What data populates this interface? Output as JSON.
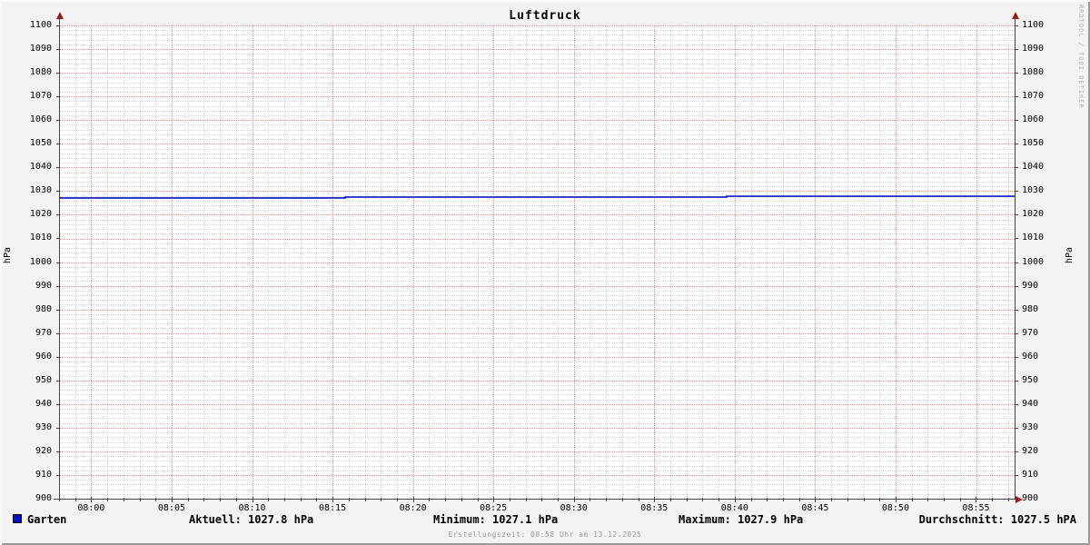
{
  "title": "Luftdruck",
  "watermark": "RRDTOOL / TOBI OETIKER",
  "y_axis_label_left": "hPa",
  "y_axis_label_right": "hPa",
  "legend": {
    "series_label": "Garten",
    "aktuell": "Aktuell: 1027.8 hPa",
    "minimum": "Minimum: 1027.1 hPa",
    "maximum": "Maximum: 1027.9 hPa",
    "durchschnitt": "Durchschnitt: 1027.5 hPA"
  },
  "footer": "Erstellungszeit: 08:58 Uhr am 13.12.2025",
  "colors": {
    "background": "#f3f3f3",
    "canvas": "#ffffff",
    "series_line": "#0011cc",
    "major_grid": "#d83030",
    "minor_grid": "#6e6e6e",
    "axis": "#444444",
    "arrow": "#9b1c1c",
    "footer_text": "#999999",
    "watermark_text": "#b4b4b4"
  },
  "chart_data": {
    "type": "line",
    "title": "Luftdruck",
    "xlabel": "",
    "ylabel": "hPa",
    "ylim": [
      900,
      1100
    ],
    "y_major_step": 10,
    "y_minor_step": 2,
    "x_start_min": -2,
    "x_end_min": 57.4,
    "x_major_step_min": 5,
    "x_minor_step_min": 1,
    "x_tick_labels": [
      "08:00",
      "08:05",
      "08:10",
      "08:15",
      "08:20",
      "08:25",
      "08:30",
      "08:35",
      "08:40",
      "08:45",
      "08:50",
      "08:55"
    ],
    "grid": true,
    "legend_position": "bottom",
    "series": [
      {
        "name": "Garten",
        "color": "#0011cc",
        "points": [
          {
            "t": -2.0,
            "v": 1027.1
          },
          {
            "t": 15.8,
            "v": 1027.1
          },
          {
            "t": 15.8,
            "v": 1027.5
          },
          {
            "t": 39.5,
            "v": 1027.5
          },
          {
            "t": 39.5,
            "v": 1027.8
          },
          {
            "t": 57.4,
            "v": 1027.8
          }
        ]
      }
    ],
    "stats": {
      "aktuell_hpa": 1027.8,
      "minimum_hpa": 1027.1,
      "maximum_hpa": 1027.9,
      "durchschnitt_hpa": 1027.5
    }
  }
}
